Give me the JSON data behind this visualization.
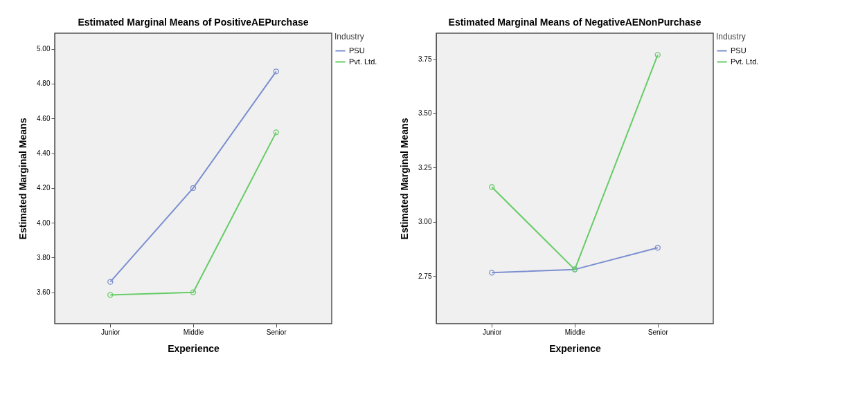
{
  "chart_data": [
    {
      "type": "line",
      "title": "Estimated Marginal Means of PositiveAEPurchase",
      "xlabel": "Experience",
      "ylabel": "Estimated Marginal Means",
      "legend_title": "Industry",
      "legend": "top right",
      "marker": "circle",
      "grid": false,
      "categories": [
        "Junior",
        "Middle",
        "Senior"
      ],
      "ylim": [
        3.42,
        5.09
      ],
      "yticks": [
        {
          "value": 3.6,
          "label": "3.60"
        },
        {
          "value": 3.8,
          "label": "3.80"
        },
        {
          "value": 4,
          "label": "4.00"
        },
        {
          "value": 4.2,
          "label": "4.20"
        },
        {
          "value": 4.4,
          "label": "4.40"
        },
        {
          "value": 4.6,
          "label": "4.60"
        },
        {
          "value": 4.8,
          "label": "4.80"
        },
        {
          "value": 5,
          "label": "5.00"
        }
      ],
      "series": [
        {
          "name": "PSU",
          "color": "#7b8ed0",
          "values": [
            3.66,
            4.2,
            4.87
          ]
        },
        {
          "name": "Pvt. Ltd.",
          "color": "#66cc66",
          "values": [
            3.585,
            3.6,
            4.52
          ]
        }
      ]
    },
    {
      "type": "line",
      "title": "Estimated Marginal Means of NegativeAENonPurchase",
      "xlabel": "Experience",
      "ylabel": "Estimated Marginal Means",
      "legend_title": "Industry",
      "legend": "top right",
      "marker": "circle",
      "grid": false,
      "categories": [
        "Junior",
        "Middle",
        "Senior"
      ],
      "ylim": [
        2.53,
        3.87
      ],
      "yticks": [
        {
          "value": 2.75,
          "label": "2.75"
        },
        {
          "value": 3,
          "label": "3.00"
        },
        {
          "value": 3.25,
          "label": "3.25"
        },
        {
          "value": 3.5,
          "label": "3.50"
        },
        {
          "value": 3.75,
          "label": "3.75"
        }
      ],
      "series": [
        {
          "name": "PSU",
          "color": "#7b8ed0",
          "values": [
            2.765,
            2.78,
            2.88
          ]
        },
        {
          "name": "Pvt. Ltd.",
          "color": "#66cc66",
          "values": [
            3.16,
            2.78,
            3.77
          ]
        }
      ]
    }
  ]
}
